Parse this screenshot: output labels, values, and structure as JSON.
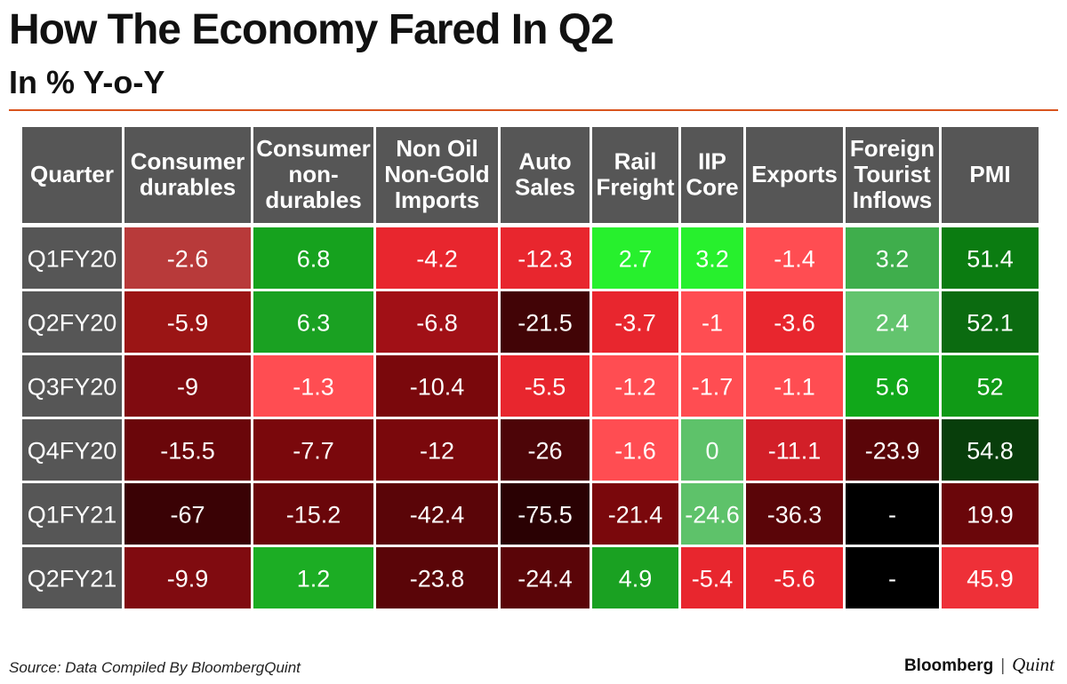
{
  "header": {
    "title": "How The Economy Fared In Q2",
    "subtitle": "In % Y-o-Y"
  },
  "footer": {
    "source": "Source: Data Compiled By BloombergQuint",
    "brand_primary": "Bloomberg",
    "brand_separator": "|",
    "brand_secondary": "Quint"
  },
  "chart_data": {
    "type": "heatmap",
    "title": "How The Economy Fared In Q2",
    "subtitle": "In % Y-o-Y",
    "row_header": "Quarter",
    "columns": [
      [
        "Consumer",
        "durables"
      ],
      [
        "Consumer",
        "non-",
        "durables"
      ],
      [
        "Non Oil",
        "Non-Gold",
        "Imports"
      ],
      [
        "Auto",
        "Sales"
      ],
      [
        "Rail",
        "Freight"
      ],
      [
        "IIP",
        "Core"
      ],
      [
        "Exports"
      ],
      [
        "Foreign",
        "Tourist",
        "Inflows"
      ],
      [
        "PMI"
      ]
    ],
    "rows": [
      "Q1FY20",
      "Q2FY20",
      "Q3FY20",
      "Q4FY20",
      "Q1FY21",
      "Q2FY21"
    ],
    "values": [
      [
        "-2.6",
        "6.8",
        "-4.2",
        "-12.3",
        "2.7",
        "3.2",
        "-1.4",
        "3.2",
        "51.4"
      ],
      [
        "-5.9",
        "6.3",
        "-6.8",
        "-21.5",
        "-3.7",
        "-1",
        "-3.6",
        "2.4",
        "52.1"
      ],
      [
        "-9",
        "-1.3",
        "-10.4",
        "-5.5",
        "-1.2",
        "-1.7",
        "-1.1",
        "5.6",
        "52"
      ],
      [
        "-15.5",
        "-7.7",
        "-12",
        "-26",
        "-1.6",
        "0",
        "-11.1",
        "-23.9",
        "54.8"
      ],
      [
        "-67",
        "-15.2",
        "-42.4",
        "-75.5",
        "-21.4",
        "-24.6",
        "-36.3",
        "-",
        "19.9"
      ],
      [
        "-9.9",
        "1.2",
        "-23.8",
        "-24.4",
        "4.9",
        "-5.4",
        "-5.6",
        "-",
        "45.9"
      ]
    ],
    "cell_colors": [
      [
        "#b83a3a",
        "#16a21e",
        "#e8262e",
        "#e8262e",
        "#27f02d",
        "#27f02d",
        "#ff4d52",
        "#3fae4c",
        "#0b7c11"
      ],
      [
        "#9b1515",
        "#1aa122",
        "#a11016",
        "#420406",
        "#e8262e",
        "#ff4d52",
        "#e8262e",
        "#63c46e",
        "#0b6b10"
      ],
      [
        "#800b10",
        "#ff4d52",
        "#7a080c",
        "#e8262e",
        "#ff4d52",
        "#ff4d52",
        "#ff4d52",
        "#11a81a",
        "#109a16"
      ],
      [
        "#6a060a",
        "#7a080c",
        "#7a080c",
        "#4d0508",
        "#ff4d52",
        "#5ec26a",
        "#d21f28",
        "#5a0508",
        "#083e0b"
      ],
      [
        "#3a0205",
        "#6a060a",
        "#5a0508",
        "#2a0103",
        "#7a080c",
        "#5ec26a",
        "#5a0508",
        "#000000",
        "#6a060a"
      ],
      [
        "#800b10",
        "#1cad24",
        "#5a0508",
        "#5a0508",
        "#1aa122",
        "#e8262e",
        "#e8262e",
        "#000000",
        "#ee3038"
      ]
    ],
    "header_color": "#565656",
    "row_label_color": "#565656"
  }
}
